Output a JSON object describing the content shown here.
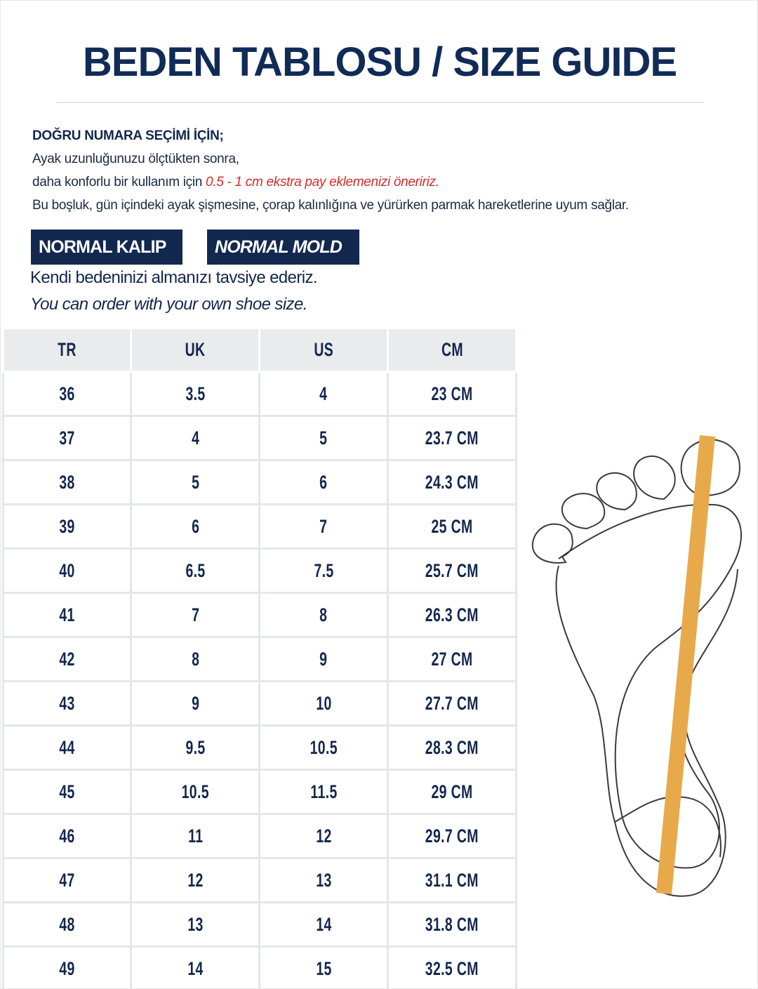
{
  "title": "BEDEN TABLOSU / SIZE GUIDE",
  "intro": {
    "heading": "DOĞRU NUMARA SEÇİMİ İÇİN;",
    "line1": "Ayak uzunluğunuzu ölçtükten sonra,",
    "line2_prefix": "daha konforlu bir kullanım için ",
    "line2_highlight": "0.5 - 1 cm ekstra pay eklemenizi öneririz.",
    "line3": "Bu boşluk, gün içindeki ayak şişmesine, çorap kalınlığına ve yürürken parmak hareketlerine uyum sağlar."
  },
  "badges": [
    "NORMAL KALIP",
    "NORMAL MOLD"
  ],
  "recommendation": {
    "tr": "Kendi bedeninizi almanızı tavsiye ederiz.",
    "en": "You can order with your own shoe size."
  },
  "table": {
    "headers": [
      "TR",
      "UK",
      "US",
      "CM"
    ],
    "rows": [
      [
        "36",
        "3.5",
        "4",
        "23 CM"
      ],
      [
        "37",
        "4",
        "5",
        "23.7 CM"
      ],
      [
        "38",
        "5",
        "6",
        "24.3 CM"
      ],
      [
        "39",
        "6",
        "7",
        "25 CM"
      ],
      [
        "40",
        "6.5",
        "7.5",
        "25.7 CM"
      ],
      [
        "41",
        "7",
        "8",
        "26.3 CM"
      ],
      [
        "42",
        "8",
        "9",
        "27 CM"
      ],
      [
        "43",
        "9",
        "10",
        "27.7 CM"
      ],
      [
        "44",
        "9.5",
        "10.5",
        "28.3 CM"
      ],
      [
        "45",
        "10.5",
        "11.5",
        "29 CM"
      ],
      [
        "46",
        "11",
        "12",
        "29.7 CM"
      ],
      [
        "47",
        "12",
        "13",
        "31.1 CM"
      ],
      [
        "48",
        "13",
        "14",
        "31.8 CM"
      ],
      [
        "49",
        "14",
        "15",
        "32.5 CM"
      ]
    ]
  },
  "colors": {
    "navy": "#12284f",
    "red": "#d62a2a",
    "measure_bar": "#e8a94a"
  },
  "illustration": "foot-outline-with-length-bar"
}
